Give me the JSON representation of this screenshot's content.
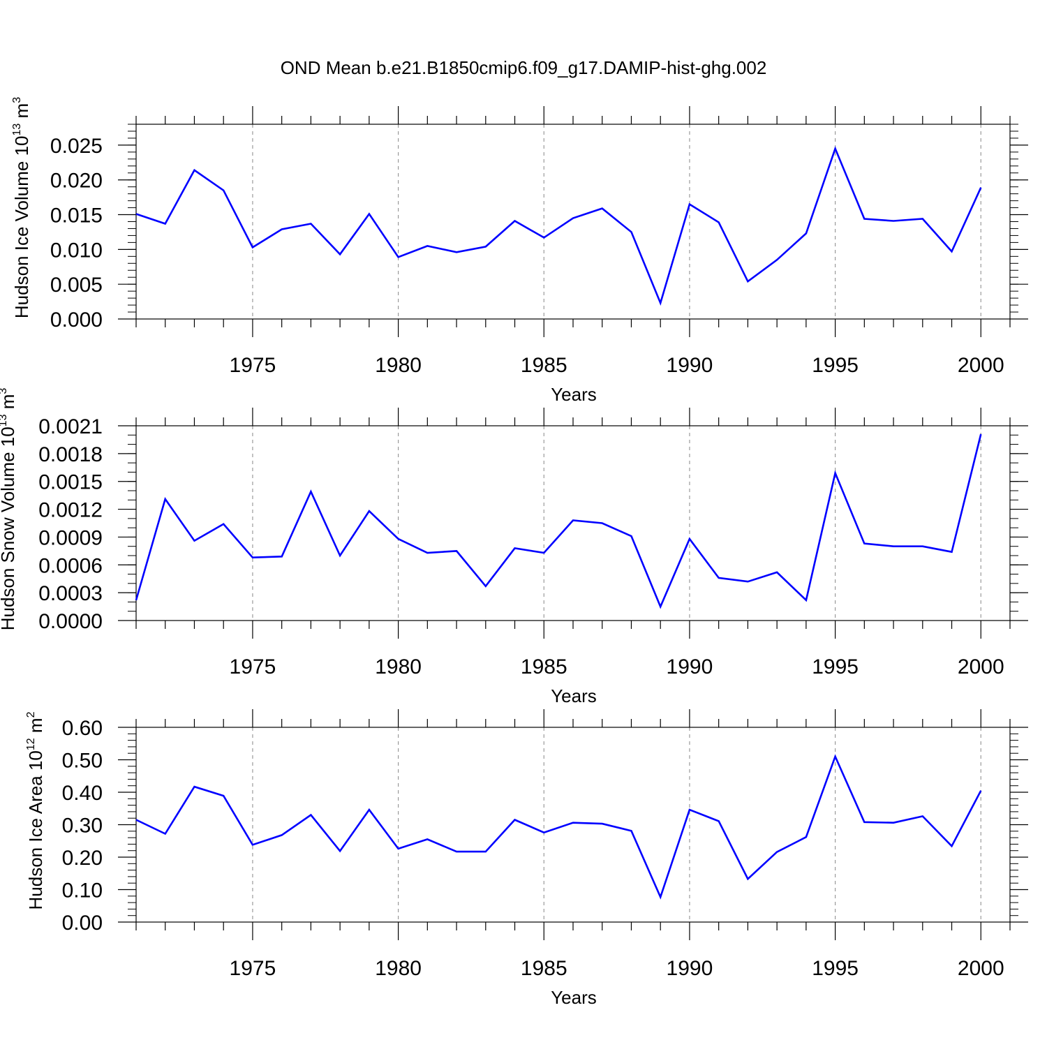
{
  "title": "OND Mean b.e21.B1850cmip6.f09_g17.DAMIP-hist-ghg.002",
  "line_color": "#0000ff",
  "chart_data": [
    {
      "type": "line",
      "ylabel_main": "Hudson Ice Volume 10",
      "ylabel_exp": "13",
      "ylabel_unit": " m",
      "ylabel_unit_exp": "3",
      "xlabel": "Years",
      "xlim": [
        1971,
        2001
      ],
      "ylim": [
        0,
        0.028
      ],
      "x_ticks": [
        1975,
        1980,
        1985,
        1990,
        1995,
        2000
      ],
      "x_tick_labels": [
        "1975",
        "1980",
        "1985",
        "1990",
        "1995",
        "2000"
      ],
      "y_ticks": [
        0,
        0.005,
        0.01,
        0.015,
        0.02,
        0.025
      ],
      "y_tick_labels": [
        "0.000",
        "0.005",
        "0.010",
        "0.015",
        "0.020",
        "0.025"
      ],
      "y_minor_step": 0.001,
      "x": [
        1971,
        1972,
        1973,
        1974,
        1975,
        1976,
        1977,
        1978,
        1979,
        1980,
        1981,
        1982,
        1983,
        1984,
        1985,
        1986,
        1987,
        1988,
        1989,
        1990,
        1991,
        1992,
        1993,
        1994,
        1995,
        1996,
        1997,
        1998,
        1999,
        2000
      ],
      "values": [
        0.0151,
        0.0137,
        0.0214,
        0.0185,
        0.0103,
        0.0129,
        0.0137,
        0.0093,
        0.0151,
        0.0089,
        0.0105,
        0.0096,
        0.0104,
        0.0141,
        0.0117,
        0.0145,
        0.0159,
        0.0125,
        0.0023,
        0.0165,
        0.0139,
        0.0054,
        0.0085,
        0.0123,
        0.0245,
        0.0144,
        0.0141,
        0.0144,
        0.0097,
        0.0189
      ]
    },
    {
      "type": "line",
      "ylabel_main": "Hudson Snow Volume 10",
      "ylabel_exp": "13",
      "ylabel_unit": " m",
      "ylabel_unit_exp": "3",
      "xlabel": "Years",
      "xlim": [
        1971,
        2001
      ],
      "ylim": [
        0,
        0.0021
      ],
      "x_ticks": [
        1975,
        1980,
        1985,
        1990,
        1995,
        2000
      ],
      "x_tick_labels": [
        "1975",
        "1980",
        "1985",
        "1990",
        "1995",
        "2000"
      ],
      "y_ticks": [
        0,
        0.0003,
        0.0006,
        0.0009,
        0.0012,
        0.0015,
        0.0018,
        0.0021
      ],
      "y_tick_labels": [
        "0.0000",
        "0.0003",
        "0.0006",
        "0.0009",
        "0.0012",
        "0.0015",
        "0.0018",
        "0.0021"
      ],
      "y_minor_step": 0.0001,
      "x": [
        1971,
        1972,
        1973,
        1974,
        1975,
        1976,
        1977,
        1978,
        1979,
        1980,
        1981,
        1982,
        1983,
        1984,
        1985,
        1986,
        1987,
        1988,
        1989,
        1990,
        1991,
        1992,
        1993,
        1994,
        1995,
        1996,
        1997,
        1998,
        1999,
        2000
      ],
      "values": [
        0.00022,
        0.00131,
        0.00086,
        0.00104,
        0.00068,
        0.00069,
        0.00139,
        0.0007,
        0.00118,
        0.00088,
        0.00073,
        0.00075,
        0.00037,
        0.00078,
        0.00073,
        0.00108,
        0.00105,
        0.00091,
        0.00015,
        0.00088,
        0.00046,
        0.00042,
        0.00052,
        0.00022,
        0.00159,
        0.00083,
        0.0008,
        0.0008,
        0.00074,
        0.00201
      ]
    },
    {
      "type": "line",
      "ylabel_main": "Hudson Ice Area 10",
      "ylabel_exp": "12",
      "ylabel_unit": " m",
      "ylabel_unit_exp": "2",
      "xlabel": "Years",
      "xlim": [
        1971,
        2001
      ],
      "ylim": [
        0,
        0.6
      ],
      "x_ticks": [
        1975,
        1980,
        1985,
        1990,
        1995,
        2000
      ],
      "x_tick_labels": [
        "1975",
        "1980",
        "1985",
        "1990",
        "1995",
        "2000"
      ],
      "y_ticks": [
        0,
        0.1,
        0.2,
        0.3,
        0.4,
        0.5,
        0.6
      ],
      "y_tick_labels": [
        "0.00",
        "0.10",
        "0.20",
        "0.30",
        "0.40",
        "0.50",
        "0.60"
      ],
      "y_minor_step": 0.02,
      "x": [
        1971,
        1972,
        1973,
        1974,
        1975,
        1976,
        1977,
        1978,
        1979,
        1980,
        1981,
        1982,
        1983,
        1984,
        1985,
        1986,
        1987,
        1988,
        1989,
        1990,
        1991,
        1992,
        1993,
        1994,
        1995,
        1996,
        1997,
        1998,
        1999,
        2000
      ],
      "values": [
        0.315,
        0.272,
        0.417,
        0.389,
        0.238,
        0.268,
        0.33,
        0.219,
        0.346,
        0.226,
        0.255,
        0.217,
        0.217,
        0.315,
        0.276,
        0.306,
        0.303,
        0.281,
        0.077,
        0.346,
        0.311,
        0.133,
        0.216,
        0.262,
        0.51,
        0.308,
        0.306,
        0.326,
        0.234,
        0.405
      ]
    }
  ]
}
